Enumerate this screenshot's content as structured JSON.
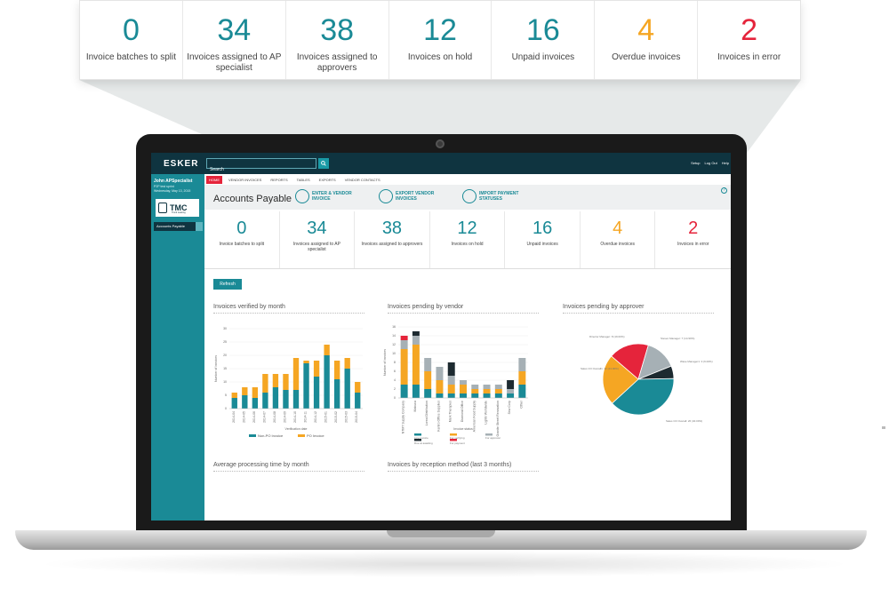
{
  "colors": {
    "teal": "#1a8a96",
    "navy": "#0f3440",
    "orange": "#f5a623",
    "red": "#e5243b",
    "gray": "#a6b0b5",
    "dark": "#1d2a30"
  },
  "callout_kpis": [
    {
      "value": "0",
      "label": "Invoice batches to split",
      "color": "#1a8a96"
    },
    {
      "value": "34",
      "label": "Invoices assigned to AP specialist",
      "color": "#1a8a96"
    },
    {
      "value": "38",
      "label": "Invoices assigned to approvers",
      "color": "#1a8a96"
    },
    {
      "value": "12",
      "label": "Invoices on hold",
      "color": "#1a8a96"
    },
    {
      "value": "16",
      "label": "Unpaid invoices",
      "color": "#1a8a96"
    },
    {
      "value": "4",
      "label": "Overdue invoices",
      "color": "#f5a623"
    },
    {
      "value": "2",
      "label": "Invoices in error",
      "color": "#e5243b"
    }
  ],
  "app": {
    "logo": "ESKER",
    "search": {
      "value": "Search",
      "icon": "search-icon"
    },
    "top_links": [
      "Setup",
      "Log Out",
      "Help"
    ],
    "user": {
      "name": "John APSpecialist",
      "role": "P2P test sprint",
      "date": "Wednesday, May 13, 2015"
    },
    "company": {
      "name": "TMC",
      "tagline": "Truck Leasing"
    },
    "app_select": "Accounts Payable",
    "nav_tabs": [
      "HOME",
      "VENDOR INVOICES",
      "REPORTS",
      "TABLES",
      "EXPORTS",
      "VENDOR CONTACTS"
    ],
    "page_title": "Accounts Payable",
    "actions": [
      {
        "line1": "ENTER & VENDOR",
        "line2": "INVOICE",
        "icon": "invoice-icon"
      },
      {
        "line1": "EXPORT VENDOR",
        "line2": "INVOICES",
        "icon": "export-icon"
      },
      {
        "line1": "IMPORT PAYMENT",
        "line2": "STATUSES",
        "icon": "import-icon"
      }
    ],
    "refresh": "Refresh",
    "panels": {
      "verified": "Invoices verified by month",
      "pending_vendor": "Invoices pending by vendor",
      "pending_approver": "Invoices pending by approver",
      "avg_time": "Average processing time by month",
      "reception": "Invoices by reception method (last 3 months)"
    }
  },
  "chart_data": [
    {
      "type": "bar",
      "title": "Invoices verified by month",
      "xlabel": "Verification date",
      "ylabel": "Number of invoices",
      "ylim": [
        0,
        30
      ],
      "yticks": [
        0,
        5,
        10,
        15,
        20,
        25,
        30
      ],
      "categories": [
        "2014-04",
        "2014-05",
        "2014-06",
        "2014-07",
        "2014-08",
        "2014-09",
        "2014-10",
        "2014-11",
        "2014-12",
        "2015-01",
        "2015-02",
        "2015-03",
        "2015-04"
      ],
      "stacked": true,
      "series": [
        {
          "name": "Non-PO Invoice",
          "color": "#1a8a96",
          "values": [
            4,
            5,
            4,
            6,
            8,
            7,
            7,
            17,
            12,
            20,
            11,
            15,
            6
          ]
        },
        {
          "name": "PO Invoice",
          "color": "#f5a623",
          "values": [
            2,
            3,
            4,
            7,
            5,
            6,
            12,
            1,
            6,
            4,
            7,
            4,
            4
          ]
        }
      ]
    },
    {
      "type": "bar",
      "title": "Invoices pending by vendor",
      "xlabel": "Invoice status",
      "ylabel": "Number of invoices",
      "ylim": [
        0,
        16
      ],
      "yticks": [
        0,
        2,
        4,
        6,
        8,
        10,
        12,
        14,
        16
      ],
      "stacked": true,
      "categories": [
        "NTMT Supply Company",
        "Mabuca",
        "Loreal Distribution",
        "Kentro Office Supplies",
        "Mark Therapies",
        "Diamond Office",
        "American Food Supply",
        "Lights Worldwide",
        "Granite Street Renovation",
        "Sew Corp",
        "Other"
      ],
      "series": [
        {
          "name": "Line invoice",
          "color": "#1a8a96",
          "values": [
            3,
            3,
            2,
            1,
            1,
            1,
            1,
            1,
            1,
            1,
            3
          ]
        },
        {
          "name": "For verifying",
          "color": "#f5a623",
          "values": [
            8,
            9,
            4,
            3,
            2,
            2,
            1,
            1,
            1,
            0,
            3
          ]
        },
        {
          "name": "For approver",
          "color": "#a6b0b5",
          "values": [
            2,
            2,
            3,
            3,
            2,
            1,
            1,
            1,
            1,
            1,
            3
          ]
        },
        {
          "name": "Due at awaiting",
          "color": "#1d2a30",
          "values": [
            0,
            1,
            0,
            0,
            3,
            0,
            0,
            0,
            0,
            2,
            0
          ]
        },
        {
          "name": "For payment",
          "color": "#e5243b",
          "values": [
            1,
            0,
            0,
            0,
            0,
            0,
            0,
            0,
            0,
            0,
            0
          ]
        }
      ]
    },
    {
      "type": "pie",
      "title": "Invoices pending by approver",
      "slices": [
        {
          "label": "Director Manager: 8 (19.00%)",
          "value": 19,
          "color": "#e5243b"
        },
        {
          "label": "Steven Manager: 7 (14.90%)",
          "value": 14.9,
          "color": "#a6b0b5"
        },
        {
          "label": "Wave Manager1: 3 (6.00%)",
          "value": 6,
          "color": "#1d2a30"
        },
        {
          "label": "Sales CO Overall: 26 (40.00%)",
          "value": 40,
          "color": "#1a8a96"
        },
        {
          "label": "Sales CO Overall1: 12 (24.00%)",
          "value": 24,
          "color": "#f5a623"
        }
      ]
    }
  ]
}
